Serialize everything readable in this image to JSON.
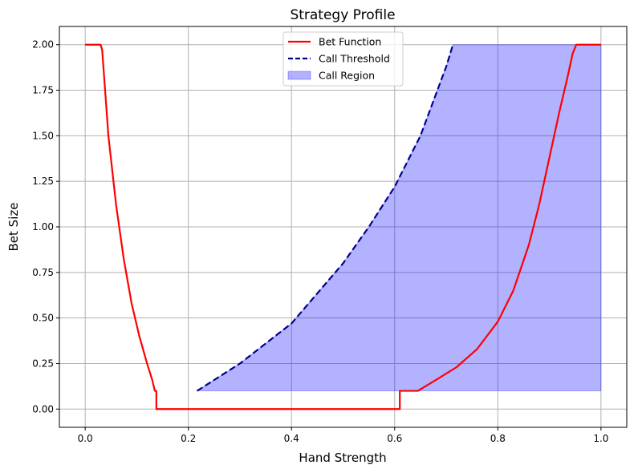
{
  "chart_data": {
    "type": "line",
    "title": "Strategy Profile",
    "xlabel": "Hand Strength",
    "ylabel": "Bet Size",
    "xlim": [
      -0.05,
      1.05
    ],
    "ylim": [
      -0.1,
      2.1
    ],
    "xticks": [
      0.0,
      0.2,
      0.4,
      0.6,
      0.8,
      1.0
    ],
    "xtick_labels": [
      "0.0",
      "0.2",
      "0.4",
      "0.6",
      "0.8",
      "1.0"
    ],
    "yticks": [
      0.0,
      0.25,
      0.5,
      0.75,
      1.0,
      1.25,
      1.5,
      1.75,
      2.0
    ],
    "ytick_labels": [
      "0.00",
      "0.25",
      "0.50",
      "0.75",
      "1.00",
      "1.25",
      "1.50",
      "1.75",
      "2.00"
    ],
    "grid": true,
    "legend_position": "top-center",
    "series": [
      {
        "name": "Bet Function",
        "style": "solid",
        "color": "#ff0000",
        "x": [
          0.0,
          0.03,
          0.033,
          0.045,
          0.06,
          0.075,
          0.09,
          0.105,
          0.12,
          0.13,
          0.135,
          0.135,
          0.138,
          0.138,
          0.61,
          0.61,
          0.645,
          0.68,
          0.72,
          0.76,
          0.8,
          0.83,
          0.86,
          0.88,
          0.9,
          0.92,
          0.935,
          0.945,
          0.952,
          0.952,
          1.0
        ],
        "y": [
          2.0,
          2.0,
          1.97,
          1.5,
          1.12,
          0.82,
          0.58,
          0.4,
          0.25,
          0.16,
          0.1,
          0.1,
          0.1,
          0.0,
          0.0,
          0.1,
          0.1,
          0.16,
          0.23,
          0.33,
          0.48,
          0.65,
          0.9,
          1.12,
          1.38,
          1.64,
          1.82,
          1.95,
          2.0,
          2.0,
          2.0
        ]
      },
      {
        "name": "Call Threshold",
        "style": "dashed",
        "color": "#00008b",
        "x": [
          0.217,
          0.3,
          0.4,
          0.5,
          0.55,
          0.6,
          0.65,
          0.7,
          0.713
        ],
        "y": [
          0.1,
          0.25,
          0.47,
          0.8,
          1.0,
          1.22,
          1.5,
          1.88,
          2.0
        ]
      }
    ],
    "fill": {
      "name": "Call Region",
      "color": "#0000ff",
      "alpha": 0.3,
      "lower": 0.1,
      "upper_series": "Call Threshold",
      "upper_cap": 2.0,
      "x_end": 1.0
    }
  }
}
